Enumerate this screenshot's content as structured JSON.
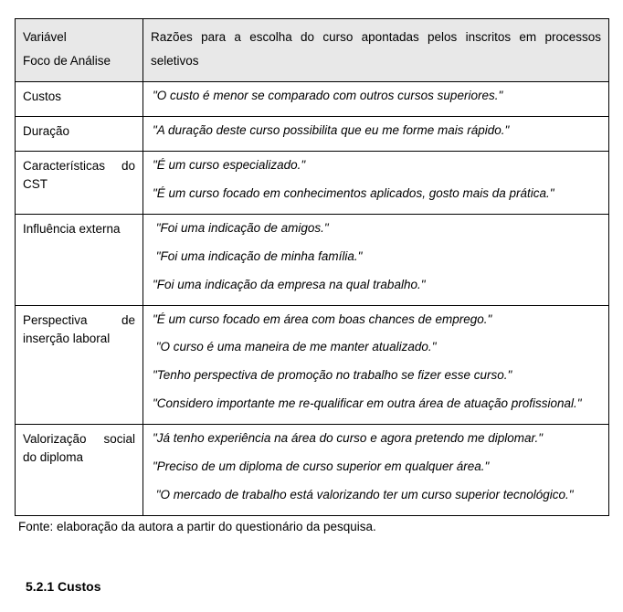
{
  "table": {
    "header": {
      "left_line1": "Variável",
      "left_line2": "Foco de Análise",
      "right": "Razões para a escolha do curso apontadas pelos inscritos em processos seletivos"
    },
    "rows": [
      {
        "variable": "Custos",
        "quotes": [
          "\"O custo é menor se comparado com outros cursos superiores.\""
        ]
      },
      {
        "variable": "Duração",
        "quotes": [
          "\"A duração deste curso possibilita que eu me forme mais rápido.\""
        ]
      },
      {
        "variable": "Características do CST",
        "quotes": [
          "\"É um curso especializado.\"",
          "\"É um curso focado em conhecimentos aplicados, gosto mais da prática.\""
        ]
      },
      {
        "variable": "Influência externa",
        "quotes": [
          " \"Foi uma indicação de amigos.\"",
          " \"Foi uma indicação de minha família.\"",
          "\"Foi uma indicação da empresa na qual trabalho.\""
        ]
      },
      {
        "variable": "Perspectiva de inserção laboral",
        "quotes": [
          "\"É um curso focado em área com boas chances de emprego.\"",
          " \"O curso é uma maneira de me manter atualizado.\"",
          "\"Tenho perspectiva de promoção no trabalho se fizer esse curso.\"",
          "\"Considero importante me re-qualificar em outra área de atuação profissional.\""
        ]
      },
      {
        "variable": "Valorização social do diploma",
        "quotes": [
          "\"Já tenho experiência na área do curso e agora pretendo me diplomar.\"",
          "\"Preciso de um diploma de curso superior em qualquer área.\"",
          " \"O mercado de trabalho está valorizando ter um curso superior tecnológico.\""
        ]
      }
    ]
  },
  "source_text": "Fonte: elaboração da autora a partir do questionário da pesquisa.",
  "section_heading": "5.2.1   Custos",
  "perspectiva_label_html": "Perspectiva&nbsp;&nbsp;&nbsp;&nbsp;de inserção laboral"
}
